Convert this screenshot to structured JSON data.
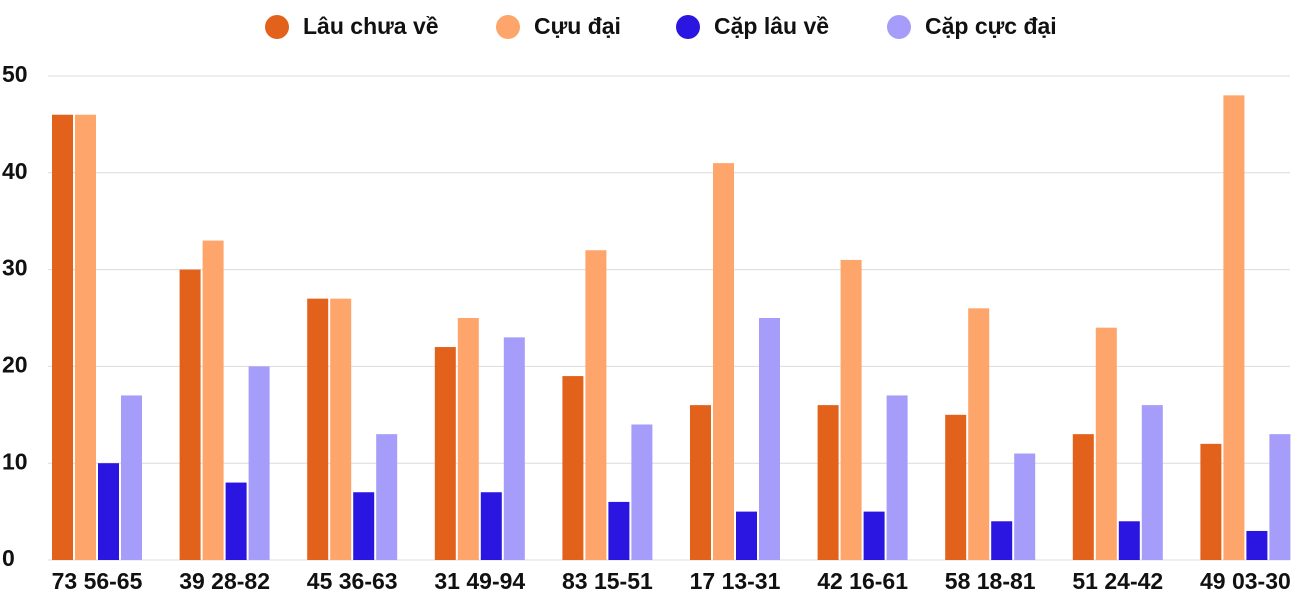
{
  "chart_data": {
    "type": "bar",
    "categories": [
      "73 56-65",
      "39 28-82",
      "45 36-63",
      "31 49-94",
      "83 15-51",
      "17 13-31",
      "42 16-61",
      "58 18-81",
      "51 24-42",
      "49 03-30"
    ],
    "series": [
      {
        "name": "Lâu chưa về",
        "color": "#e2621b",
        "values": [
          46,
          30,
          27,
          22,
          19,
          16,
          16,
          15,
          13,
          12
        ]
      },
      {
        "name": "Cựu đại",
        "color": "#fda56a",
        "values": [
          46,
          33,
          27,
          25,
          32,
          41,
          31,
          26,
          24,
          48
        ]
      },
      {
        "name": "Cặp lâu về",
        "color": "#2a16e0",
        "values": [
          10,
          8,
          7,
          7,
          6,
          5,
          5,
          4,
          4,
          3
        ]
      },
      {
        "name": "Cặp cực đại",
        "color": "#a59df9",
        "values": [
          17,
          20,
          13,
          23,
          14,
          25,
          17,
          11,
          16,
          13
        ]
      }
    ],
    "ylim": [
      0,
      50
    ],
    "yticks": [
      0,
      10,
      20,
      30,
      40,
      50
    ],
    "grid": true,
    "legend": "top"
  }
}
